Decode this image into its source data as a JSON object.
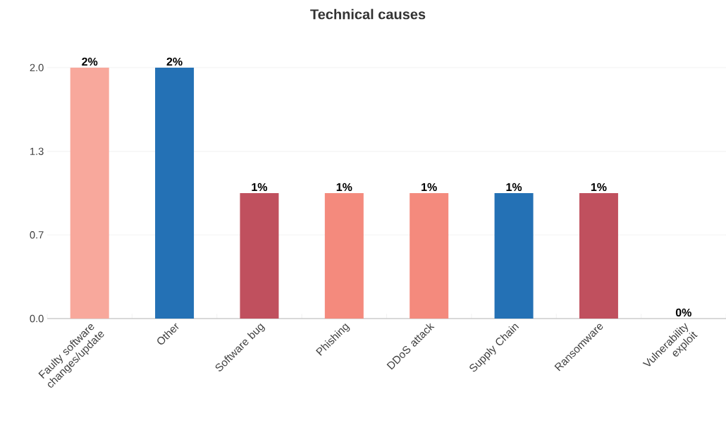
{
  "chart_data": {
    "type": "bar",
    "title": "Technical causes",
    "categories": [
      "Faulty software changes/update",
      "Other",
      "Software bug",
      "Phishing",
      "DDoS attack",
      "Supply Chain",
      "Ransomware",
      "Vulnerability exploit"
    ],
    "values": [
      2,
      2,
      1,
      1,
      1,
      1,
      1,
      0
    ],
    "colors": [
      "#f8a89c",
      "#2471b5",
      "#c0505e",
      "#f48a7d",
      "#f48a7d",
      "#2471b5",
      "#c0505e",
      "#f48a7d"
    ],
    "value_labels": [
      "2%",
      "2%",
      "1%",
      "1%",
      "1%",
      "1%",
      "1%",
      "0%"
    ],
    "ylim": [
      0,
      2
    ],
    "yticks": [
      {
        "value": 0,
        "label": "0.0"
      },
      {
        "value": 0.667,
        "label": "0.7"
      },
      {
        "value": 1.333,
        "label": "1.3"
      },
      {
        "value": 2,
        "label": "2.0"
      }
    ],
    "grid": "y"
  }
}
